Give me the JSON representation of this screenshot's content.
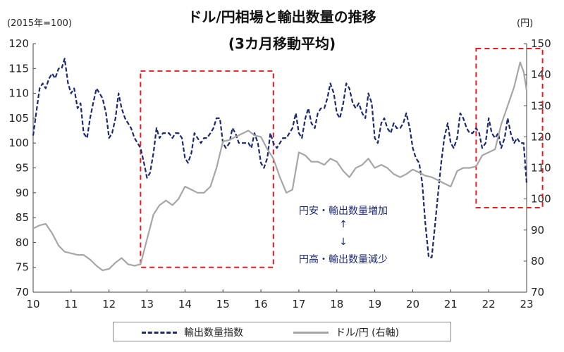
{
  "chart_data": {
    "type": "line",
    "title": "ドル/円相場と輸出数量の推移",
    "subtitle": "(3カ月移動平均)",
    "unit_left": "(2015年=100)",
    "unit_right": "(円)",
    "x_ticks": [
      "10",
      "11",
      "12",
      "13",
      "14",
      "15",
      "16",
      "17",
      "18",
      "19",
      "20",
      "21",
      "22",
      "23"
    ],
    "x_range": [
      2010,
      2023
    ],
    "y_left": {
      "ticks": [
        70,
        75,
        80,
        85,
        90,
        95,
        100,
        105,
        110,
        115,
        120
      ],
      "range": [
        70,
        120
      ]
    },
    "y_right": {
      "ticks": [
        70,
        80,
        90,
        100,
        110,
        120,
        130,
        140,
        150
      ],
      "range": [
        70,
        150
      ]
    },
    "grid": false,
    "legend_position": "bottom",
    "series": [
      {
        "name": "輸出数量指数",
        "axis": "left",
        "color": "#1b2a72",
        "style": "dashed",
        "points": [
          [
            2010.0,
            101.5
          ],
          [
            2010.08,
            106
          ],
          [
            2010.17,
            111
          ],
          [
            2010.25,
            112
          ],
          [
            2010.33,
            111
          ],
          [
            2010.42,
            113
          ],
          [
            2010.5,
            114
          ],
          [
            2010.58,
            113
          ],
          [
            2010.67,
            115
          ],
          [
            2010.75,
            115
          ],
          [
            2010.83,
            117
          ],
          [
            2010.92,
            112
          ],
          [
            2011.0,
            110
          ],
          [
            2011.08,
            111
          ],
          [
            2011.17,
            107
          ],
          [
            2011.25,
            108
          ],
          [
            2011.33,
            102
          ],
          [
            2011.42,
            101
          ],
          [
            2011.5,
            105
          ],
          [
            2011.58,
            108
          ],
          [
            2011.67,
            111
          ],
          [
            2011.75,
            110
          ],
          [
            2011.83,
            109
          ],
          [
            2011.92,
            106
          ],
          [
            2012.0,
            101
          ],
          [
            2012.08,
            102
          ],
          [
            2012.17,
            105
          ],
          [
            2012.25,
            110
          ],
          [
            2012.33,
            107
          ],
          [
            2012.42,
            105
          ],
          [
            2012.5,
            104
          ],
          [
            2012.58,
            103
          ],
          [
            2012.67,
            101
          ],
          [
            2012.75,
            100
          ],
          [
            2012.83,
            99
          ],
          [
            2012.92,
            96
          ],
          [
            2013.0,
            93
          ],
          [
            2013.08,
            94
          ],
          [
            2013.17,
            98
          ],
          [
            2013.25,
            103
          ],
          [
            2013.33,
            101
          ],
          [
            2013.42,
            102
          ],
          [
            2013.5,
            102
          ],
          [
            2013.58,
            102
          ],
          [
            2013.67,
            101
          ],
          [
            2013.75,
            102
          ],
          [
            2013.83,
            102
          ],
          [
            2013.92,
            101
          ],
          [
            2014.0,
            97
          ],
          [
            2014.08,
            96
          ],
          [
            2014.17,
            98
          ],
          [
            2014.25,
            102
          ],
          [
            2014.33,
            101
          ],
          [
            2014.42,
            100
          ],
          [
            2014.5,
            101
          ],
          [
            2014.58,
            101
          ],
          [
            2014.67,
            102
          ],
          [
            2014.75,
            103
          ],
          [
            2014.83,
            105
          ],
          [
            2014.92,
            105
          ],
          [
            2015.0,
            100
          ],
          [
            2015.08,
            99
          ],
          [
            2015.17,
            100
          ],
          [
            2015.25,
            103
          ],
          [
            2015.33,
            102
          ],
          [
            2015.42,
            100
          ],
          [
            2015.5,
            100
          ],
          [
            2015.58,
            100
          ],
          [
            2015.67,
            100
          ],
          [
            2015.75,
            99
          ],
          [
            2015.83,
            102
          ],
          [
            2015.92,
            100
          ],
          [
            2016.0,
            96
          ],
          [
            2016.08,
            95
          ],
          [
            2016.17,
            97
          ],
          [
            2016.25,
            102
          ],
          [
            2016.33,
            100
          ],
          [
            2016.42,
            99
          ],
          [
            2016.5,
            100
          ],
          [
            2016.58,
            101
          ],
          [
            2016.67,
            101
          ],
          [
            2016.75,
            102
          ],
          [
            2016.83,
            103
          ],
          [
            2016.92,
            106
          ],
          [
            2017.0,
            102
          ],
          [
            2017.08,
            101
          ],
          [
            2017.17,
            105
          ],
          [
            2017.25,
            107
          ],
          [
            2017.33,
            104
          ],
          [
            2017.42,
            103
          ],
          [
            2017.5,
            106
          ],
          [
            2017.58,
            107
          ],
          [
            2017.67,
            107
          ],
          [
            2017.75,
            109
          ],
          [
            2017.83,
            112
          ],
          [
            2017.92,
            110
          ],
          [
            2018.0,
            106
          ],
          [
            2018.08,
            105
          ],
          [
            2018.17,
            108
          ],
          [
            2018.25,
            112
          ],
          [
            2018.33,
            111
          ],
          [
            2018.42,
            108
          ],
          [
            2018.5,
            107
          ],
          [
            2018.58,
            108
          ],
          [
            2018.67,
            106
          ],
          [
            2018.75,
            105
          ],
          [
            2018.83,
            110
          ],
          [
            2018.92,
            108
          ],
          [
            2019.0,
            101
          ],
          [
            2019.08,
            100
          ],
          [
            2019.17,
            104
          ],
          [
            2019.25,
            105
          ],
          [
            2019.33,
            103
          ],
          [
            2019.42,
            102
          ],
          [
            2019.5,
            104
          ],
          [
            2019.58,
            103
          ],
          [
            2019.67,
            103
          ],
          [
            2019.75,
            104
          ],
          [
            2019.83,
            106
          ],
          [
            2019.92,
            103
          ],
          [
            2020.0,
            99
          ],
          [
            2020.08,
            97
          ],
          [
            2020.17,
            96
          ],
          [
            2020.25,
            92
          ],
          [
            2020.33,
            84
          ],
          [
            2020.42,
            77
          ],
          [
            2020.5,
            77
          ],
          [
            2020.58,
            83
          ],
          [
            2020.67,
            90
          ],
          [
            2020.75,
            96
          ],
          [
            2020.83,
            101
          ],
          [
            2020.92,
            104
          ],
          [
            2021.0,
            100
          ],
          [
            2021.08,
            99
          ],
          [
            2021.17,
            101
          ],
          [
            2021.25,
            106
          ],
          [
            2021.33,
            105
          ],
          [
            2021.42,
            103
          ],
          [
            2021.5,
            102
          ],
          [
            2021.58,
            102
          ],
          [
            2021.67,
            103
          ],
          [
            2021.75,
            102
          ],
          [
            2021.83,
            99
          ],
          [
            2021.92,
            100
          ],
          [
            2022.0,
            105
          ],
          [
            2022.08,
            102
          ],
          [
            2022.17,
            101
          ],
          [
            2022.25,
            102
          ],
          [
            2022.33,
            99
          ],
          [
            2022.42,
            101
          ],
          [
            2022.5,
            105
          ],
          [
            2022.58,
            102
          ],
          [
            2022.67,
            100
          ],
          [
            2022.75,
            101
          ],
          [
            2022.83,
            100
          ],
          [
            2022.92,
            100
          ],
          [
            2023.0,
            92
          ]
        ]
      },
      {
        "name": "ドル/円 (右軸)",
        "axis": "right",
        "color": "#a6a6a6",
        "style": "solid",
        "points": [
          [
            2010.0,
            90.5
          ],
          [
            2010.17,
            91.5
          ],
          [
            2010.33,
            92
          ],
          [
            2010.5,
            89
          ],
          [
            2010.67,
            85
          ],
          [
            2010.83,
            83
          ],
          [
            2011.0,
            82.5
          ],
          [
            2011.17,
            82
          ],
          [
            2011.33,
            82
          ],
          [
            2011.5,
            80.5
          ],
          [
            2011.67,
            78.5
          ],
          [
            2011.83,
            77
          ],
          [
            2012.0,
            77.5
          ],
          [
            2012.17,
            79.5
          ],
          [
            2012.33,
            81
          ],
          [
            2012.5,
            79
          ],
          [
            2012.67,
            78.5
          ],
          [
            2012.83,
            79
          ],
          [
            2013.0,
            87
          ],
          [
            2013.17,
            95
          ],
          [
            2013.33,
            98
          ],
          [
            2013.5,
            99.5
          ],
          [
            2013.67,
            98
          ],
          [
            2013.83,
            100
          ],
          [
            2014.0,
            104
          ],
          [
            2014.17,
            103
          ],
          [
            2014.33,
            102
          ],
          [
            2014.5,
            102
          ],
          [
            2014.67,
            104
          ],
          [
            2014.83,
            110
          ],
          [
            2015.0,
            118.5
          ],
          [
            2015.17,
            119
          ],
          [
            2015.33,
            120
          ],
          [
            2015.5,
            121
          ],
          [
            2015.67,
            122
          ],
          [
            2015.83,
            120.5
          ],
          [
            2016.0,
            120
          ],
          [
            2016.17,
            116
          ],
          [
            2016.33,
            113
          ],
          [
            2016.5,
            107
          ],
          [
            2016.67,
            102
          ],
          [
            2016.83,
            103
          ],
          [
            2017.0,
            115
          ],
          [
            2017.17,
            114
          ],
          [
            2017.33,
            112
          ],
          [
            2017.5,
            112
          ],
          [
            2017.67,
            111
          ],
          [
            2017.83,
            113
          ],
          [
            2018.0,
            112
          ],
          [
            2018.17,
            109
          ],
          [
            2018.33,
            107
          ],
          [
            2018.5,
            110
          ],
          [
            2018.67,
            111
          ],
          [
            2018.83,
            113
          ],
          [
            2019.0,
            110
          ],
          [
            2019.17,
            111
          ],
          [
            2019.33,
            110
          ],
          [
            2019.5,
            108
          ],
          [
            2019.67,
            107
          ],
          [
            2019.83,
            108
          ],
          [
            2020.0,
            109.5
          ],
          [
            2020.17,
            108.5
          ],
          [
            2020.33,
            107.5
          ],
          [
            2020.5,
            107
          ],
          [
            2020.67,
            106
          ],
          [
            2020.83,
            105
          ],
          [
            2021.0,
            104
          ],
          [
            2021.17,
            109
          ],
          [
            2021.33,
            110
          ],
          [
            2021.5,
            110
          ],
          [
            2021.67,
            110.5
          ],
          [
            2021.83,
            114
          ],
          [
            2022.0,
            115
          ],
          [
            2022.17,
            116
          ],
          [
            2022.33,
            124
          ],
          [
            2022.5,
            130
          ],
          [
            2022.67,
            136
          ],
          [
            2022.83,
            144
          ],
          [
            2022.92,
            141
          ],
          [
            2023.0,
            135
          ]
        ]
      }
    ],
    "annotations": {
      "line1": "円安・輸出数量増加",
      "arrow_up": "↑",
      "arrow_down": "↓",
      "line2": "円高・輸出数量減少"
    },
    "highlight_boxes": [
      {
        "x_range": [
          2012.83,
          2016.33
        ],
        "y_range_left": [
          75,
          114.5
        ],
        "color": "#e02020"
      },
      {
        "x_range": [
          2021.67,
          2023.42
        ],
        "y_range_left": [
          87,
          119
        ],
        "color": "#e02020"
      }
    ],
    "legend": [
      "輸出数量指数",
      "ドル/円 (右軸)"
    ]
  }
}
